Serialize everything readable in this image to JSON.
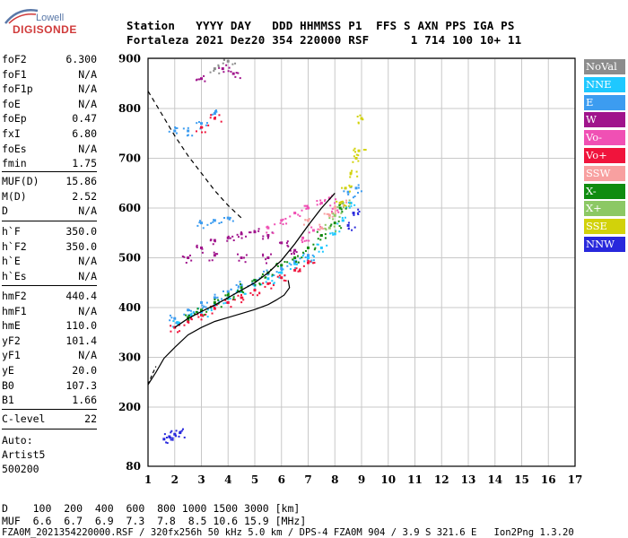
{
  "logo": {
    "line1": "Lowell",
    "line2": "DIGISONDE"
  },
  "header": {
    "line1": "Station   YYYY DAY   DDD HHMMSS P1  FFS S AXN PPS IGA PS",
    "line2": "Fortaleza 2021 Dez20 354 220000 RSF      1 714 100 10+ 11"
  },
  "params": {
    "group1": [
      {
        "k": "foF2",
        "v": "6.300"
      },
      {
        "k": "foF1",
        "v": "N/A"
      },
      {
        "k": "foF1p",
        "v": "N/A"
      },
      {
        "k": "foE",
        "v": "N/A"
      },
      {
        "k": "foEp",
        "v": "0.47"
      },
      {
        "k": "fxI",
        "v": "6.80"
      },
      {
        "k": "foEs",
        "v": "N/A"
      },
      {
        "k": "fmin",
        "v": "1.75"
      }
    ],
    "group2": [
      {
        "k": "MUF(D)",
        "v": "15.86"
      },
      {
        "k": "M(D)",
        "v": "2.52"
      },
      {
        "k": "D",
        "v": "N/A"
      }
    ],
    "group3": [
      {
        "k": "h`F",
        "v": "350.0"
      },
      {
        "k": "h`F2",
        "v": "350.0"
      },
      {
        "k": "h`E",
        "v": "N/A"
      },
      {
        "k": "h`Es",
        "v": "N/A"
      }
    ],
    "group4": [
      {
        "k": "hmF2",
        "v": "440.4"
      },
      {
        "k": "hmF1",
        "v": "N/A"
      },
      {
        "k": "hmE",
        "v": "110.0"
      },
      {
        "k": "yF2",
        "v": "101.4"
      },
      {
        "k": "yF1",
        "v": "N/A"
      },
      {
        "k": "yE",
        "v": "20.0"
      },
      {
        "k": "B0",
        "v": "107.3"
      },
      {
        "k": "B1",
        "v": "1.66"
      }
    ],
    "clevel": {
      "k": "C-level",
      "v": "22"
    }
  },
  "auto": {
    "line1": "Auto:",
    "line2": "Artist5",
    "line3": "500200"
  },
  "legend": [
    {
      "label": "NoVal",
      "color": "#8c8c8c"
    },
    {
      "label": "NNE",
      "color": "#1ec8ff"
    },
    {
      "label": "E",
      "color": "#3c9cf0"
    },
    {
      "label": "W",
      "color": "#a0148c"
    },
    {
      "label": "Vo-",
      "color": "#f050b4"
    },
    {
      "label": "Vo+",
      "color": "#f0143c"
    },
    {
      "label": "SSW",
      "color": "#f8a0a0"
    },
    {
      "label": "X-",
      "color": "#108c10"
    },
    {
      "label": "X+",
      "color": "#8cc864"
    },
    {
      "label": "SSE",
      "color": "#d2d20a"
    },
    {
      "label": "NNW",
      "color": "#2828dc"
    }
  ],
  "footer": {
    "d_row": "D    100  200  400  600  800 1000 1500 3000 [km]",
    "muf_row": "MUF  6.6  6.7  6.9  7.3  7.8  8.5 10.6 15.9 [MHz]",
    "file_row": "FZA0M_2021354220000.RSF / 320fx256h 50 kHz 5.0 km / DPS-4 FZA0M 904 / 3.9 S 321.6 E   Ion2Png 1.3.20"
  },
  "chart_data": {
    "type": "scatter",
    "xlim": [
      1,
      17
    ],
    "ylim": [
      80,
      900
    ],
    "x_ticks": [
      1,
      2,
      3,
      4,
      5,
      6,
      7,
      8,
      9,
      10,
      11,
      12,
      13,
      14,
      15,
      16,
      17
    ],
    "y_ticks": [
      80,
      200,
      300,
      400,
      500,
      600,
      700,
      800,
      900
    ],
    "grid": true,
    "legend_position": "right",
    "series": [
      {
        "name": "NNE",
        "color": "#1ec8ff",
        "points": [
          [
            2.1,
            370
          ],
          [
            2.6,
            385
          ],
          [
            3.0,
            392
          ],
          [
            3.5,
            405
          ],
          [
            4.0,
            418
          ],
          [
            4.5,
            432
          ],
          [
            5.0,
            445
          ],
          [
            5.5,
            458
          ],
          [
            6.0,
            470
          ],
          [
            6.5,
            488
          ],
          [
            7.0,
            500
          ],
          [
            7.5,
            520
          ],
          [
            8.0,
            548
          ],
          [
            8.3,
            575
          ],
          [
            8.6,
            610
          ]
        ]
      },
      {
        "name": "E",
        "color": "#3c9cf0",
        "points": [
          [
            2.0,
            378
          ],
          [
            2.5,
            395
          ],
          [
            3.0,
            410
          ],
          [
            3.5,
            420
          ],
          [
            4.0,
            432
          ],
          [
            4.5,
            445
          ],
          [
            5.0,
            455
          ],
          [
            5.5,
            468
          ],
          [
            6.0,
            478
          ],
          [
            6.5,
            492
          ],
          [
            7.0,
            505
          ],
          [
            3.0,
            570
          ],
          [
            3.5,
            575
          ],
          [
            4.0,
            580
          ],
          [
            2.5,
            755
          ],
          [
            3.0,
            770
          ],
          [
            3.5,
            790
          ],
          [
            2.0,
            755
          ],
          [
            8.5,
            632
          ],
          [
            8.8,
            640
          ]
        ]
      },
      {
        "name": "W",
        "color": "#a0148c",
        "points": [
          [
            2.5,
            500
          ],
          [
            3.0,
            520
          ],
          [
            3.5,
            535
          ],
          [
            4.0,
            540
          ],
          [
            4.5,
            548
          ],
          [
            5.0,
            552
          ],
          [
            5.5,
            545
          ],
          [
            6.0,
            530
          ],
          [
            6.5,
            515
          ],
          [
            3.5,
            505
          ],
          [
            4.5,
            500
          ],
          [
            5.5,
            500
          ],
          [
            3.0,
            860
          ],
          [
            3.8,
            880
          ],
          [
            4.2,
            870
          ]
        ]
      },
      {
        "name": "Vo-",
        "color": "#f050b4",
        "points": [
          [
            5.5,
            560
          ],
          [
            6.0,
            575
          ],
          [
            6.5,
            590
          ],
          [
            7.0,
            600
          ],
          [
            7.5,
            610
          ],
          [
            7.8,
            620
          ],
          [
            8.0,
            600
          ],
          [
            6.8,
            540
          ],
          [
            7.2,
            555
          ]
        ]
      },
      {
        "name": "Vo+",
        "color": "#f0143c",
        "points": [
          [
            2.0,
            360
          ],
          [
            2.5,
            372
          ],
          [
            3.0,
            385
          ],
          [
            3.5,
            398
          ],
          [
            4.0,
            410
          ],
          [
            4.5,
            420
          ],
          [
            5.0,
            435
          ],
          [
            5.5,
            448
          ],
          [
            6.0,
            460
          ],
          [
            6.5,
            475
          ],
          [
            7.0,
            490
          ],
          [
            3.0,
            762
          ],
          [
            3.5,
            780
          ]
        ]
      },
      {
        "name": "SSW",
        "color": "#f8a0a0",
        "points": [
          [
            7.5,
            560
          ],
          [
            7.8,
            585
          ],
          [
            8.0,
            600
          ],
          [
            8.2,
            610
          ],
          [
            7.0,
            575
          ]
        ]
      },
      {
        "name": "X-",
        "color": "#108c10",
        "points": [
          [
            2.5,
            380
          ],
          [
            3.0,
            395
          ],
          [
            3.5,
            410
          ],
          [
            4.0,
            425
          ],
          [
            4.5,
            440
          ],
          [
            5.0,
            455
          ],
          [
            5.5,
            470
          ],
          [
            6.0,
            485
          ],
          [
            6.5,
            500
          ],
          [
            7.0,
            520
          ],
          [
            7.5,
            545
          ],
          [
            8.0,
            570
          ],
          [
            8.2,
            600
          ]
        ]
      },
      {
        "name": "X+",
        "color": "#8cc864",
        "points": [
          [
            7.8,
            560
          ],
          [
            8.0,
            585
          ],
          [
            8.3,
            610
          ]
        ]
      },
      {
        "name": "SSE",
        "color": "#d2d20a",
        "points": [
          [
            8.2,
            610
          ],
          [
            8.4,
            640
          ],
          [
            8.6,
            670
          ],
          [
            8.8,
            700
          ],
          [
            8.9,
            715
          ],
          [
            9.0,
            780
          ]
        ]
      },
      {
        "name": "NNW",
        "color": "#2828dc",
        "points": [
          [
            1.6,
            135
          ],
          [
            1.8,
            140
          ],
          [
            2.0,
            145
          ],
          [
            2.2,
            148
          ],
          [
            8.5,
            565
          ],
          [
            8.7,
            590
          ]
        ]
      },
      {
        "name": "NoVal",
        "color": "#8c8c8c",
        "points": [
          [
            3.5,
            880
          ],
          [
            4.0,
            895
          ]
        ]
      }
    ],
    "profile_curve": [
      [
        1.0,
        245
      ],
      [
        1.3,
        270
      ],
      [
        1.6,
        298
      ],
      [
        2.0,
        320
      ],
      [
        2.5,
        345
      ],
      [
        3.0,
        360
      ],
      [
        3.5,
        372
      ],
      [
        4.0,
        380
      ],
      [
        4.5,
        388
      ],
      [
        5.0,
        396
      ],
      [
        5.5,
        406
      ],
      [
        5.8,
        415
      ],
      [
        6.1,
        425
      ],
      [
        6.3,
        440
      ],
      [
        6.25,
        455
      ]
    ],
    "profile_dashed_lower": [
      [
        1.0,
        245
      ],
      [
        1.15,
        265
      ],
      [
        1.3,
        282
      ]
    ],
    "profile_dashed_upper": [
      [
        1.0,
        835
      ],
      [
        1.5,
        790
      ],
      [
        2.0,
        745
      ],
      [
        2.5,
        705
      ],
      [
        3.0,
        670
      ],
      [
        3.5,
        635
      ],
      [
        4.0,
        605
      ],
      [
        4.5,
        580
      ]
    ],
    "trace_line": [
      [
        2.0,
        360
      ],
      [
        2.5,
        378
      ],
      [
        3.0,
        392
      ],
      [
        3.5,
        405
      ],
      [
        4.0,
        420
      ],
      [
        4.5,
        435
      ],
      [
        5.0,
        450
      ],
      [
        5.5,
        470
      ],
      [
        6.0,
        495
      ],
      [
        6.5,
        528
      ],
      [
        7.0,
        565
      ],
      [
        7.5,
        600
      ],
      [
        8.0,
        630
      ]
    ]
  }
}
